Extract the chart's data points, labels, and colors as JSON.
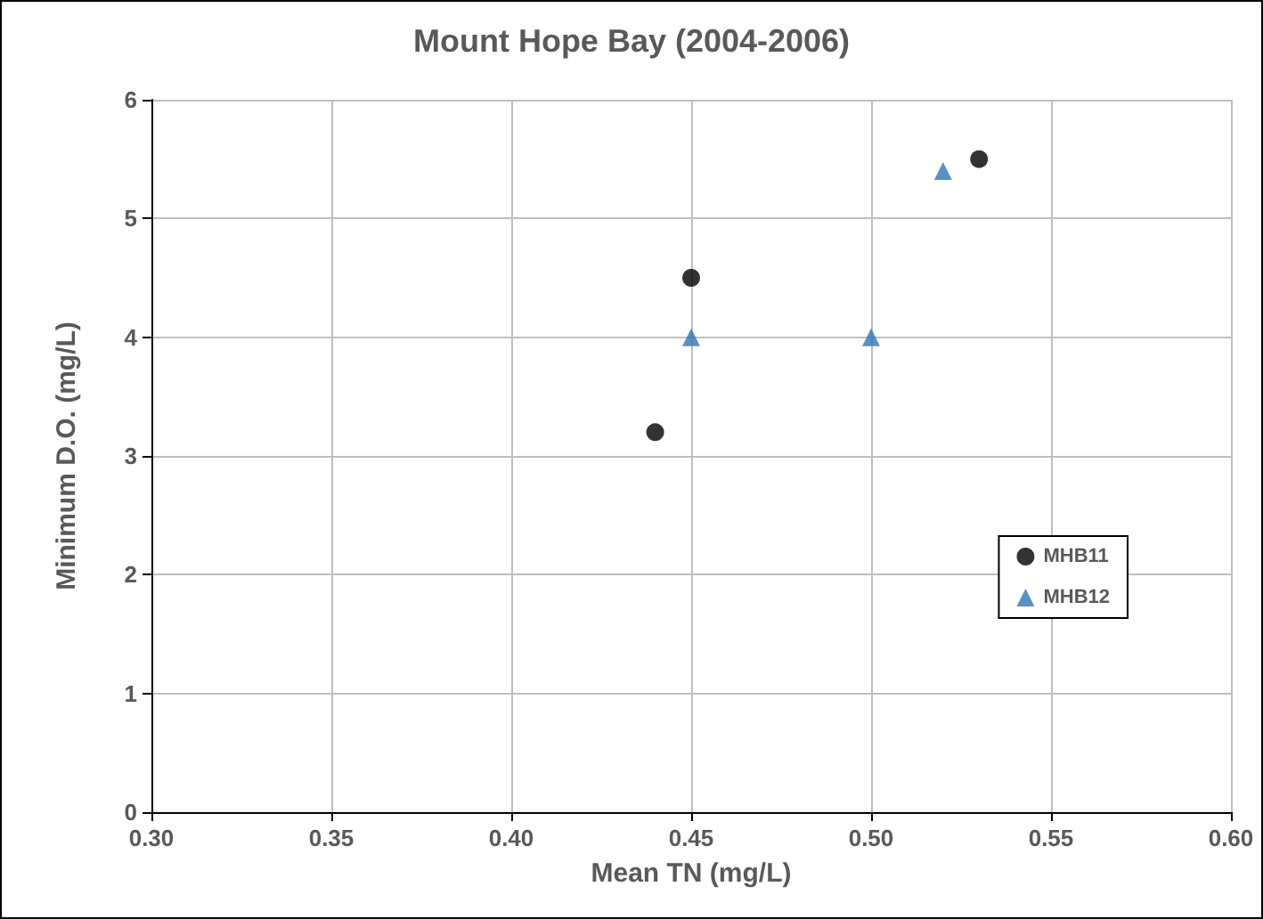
{
  "chart_data": {
    "type": "scatter",
    "title": "Mount Hope Bay (2004-2006)",
    "xlabel": "Mean TN (mg/L)",
    "ylabel": "Minimum D.O. (mg/L)",
    "xlim": [
      0.3,
      0.6
    ],
    "xticks": [
      {
        "value": 0.3,
        "label": "0.30"
      },
      {
        "value": 0.35,
        "label": "0.35"
      },
      {
        "value": 0.4,
        "label": "0.40"
      },
      {
        "value": 0.45,
        "label": "0.45"
      },
      {
        "value": 0.5,
        "label": "0.50"
      },
      {
        "value": 0.55,
        "label": "0.55"
      },
      {
        "value": 0.6,
        "label": "0.60"
      }
    ],
    "ylim": [
      0,
      6
    ],
    "yticks": [
      0,
      1,
      2,
      3,
      4,
      5,
      6
    ],
    "grid": true,
    "legend": "right",
    "series": [
      {
        "name": "MHB11",
        "color": "#000000",
        "marker": "circle",
        "x": [
          0.44,
          0.45,
          0.53
        ],
        "values": [
          3.2,
          4.5,
          5.5
        ]
      },
      {
        "name": "MHB12",
        "color": "#2e75b6",
        "marker": "triangle",
        "x": [
          0.45,
          0.5,
          0.52
        ],
        "values": [
          4.0,
          4.0,
          5.4
        ]
      }
    ]
  }
}
